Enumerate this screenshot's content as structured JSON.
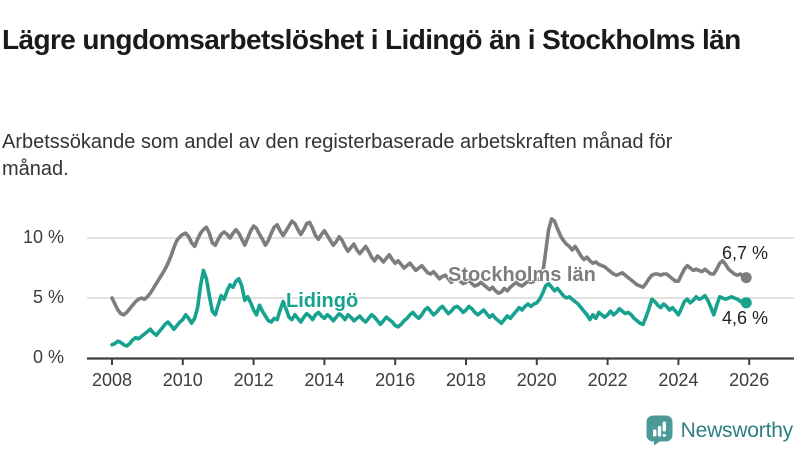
{
  "header": {
    "title": "Lägre ungdomsarbetslöshet i Lidingö än i Stockholms län",
    "subtitle": "Arbetssökande som andel av den registerbaserade arbetskraften månad för månad."
  },
  "footer": {
    "brand": "Newsworthy"
  },
  "colors": {
    "title": "#1a1a1a",
    "text": "#333333",
    "axis": "#3f3f3f",
    "grid": "#d9d9d9",
    "stockholm_gray": "#7d7d7d",
    "lidingo_teal": "#17a290",
    "logo_icon": "#4b9a98",
    "logo_text": "#2f7e86"
  },
  "chart_data": {
    "type": "line",
    "unit": "%",
    "x_unit": "month",
    "x_start": "2008-01",
    "x_end": "2025-12",
    "grid": "horizontal",
    "ylim": [
      0,
      12.5
    ],
    "y_ticks": [
      {
        "label": "0 %",
        "value": 0
      },
      {
        "label": "5 %",
        "value": 5
      },
      {
        "label": "10 %",
        "value": 10
      }
    ],
    "x_ticks": [
      {
        "label": "2008",
        "year": 2008
      },
      {
        "label": "2010",
        "year": 2010
      },
      {
        "label": "2012",
        "year": 2012
      },
      {
        "label": "2014",
        "year": 2014
      },
      {
        "label": "2016",
        "year": 2016
      },
      {
        "label": "2018",
        "year": 2018
      },
      {
        "label": "2020",
        "year": 2020
      },
      {
        "label": "2022",
        "year": 2022
      },
      {
        "label": "2024",
        "year": 2024
      },
      {
        "label": "2026",
        "year": 2026
      }
    ],
    "series": [
      {
        "id": "stockholms-lan",
        "name": "Stockholms län",
        "color": "#7d7d7d",
        "end_label": "6,7 %",
        "end_value": 6.7,
        "values": [
          5.0,
          4.5,
          4.0,
          3.7,
          3.6,
          3.8,
          4.1,
          4.4,
          4.7,
          4.9,
          5.0,
          4.9,
          5.1,
          5.4,
          5.8,
          6.2,
          6.6,
          7.0,
          7.4,
          7.9,
          8.5,
          9.2,
          9.8,
          10.1,
          10.3,
          10.4,
          10.1,
          9.6,
          9.3,
          9.9,
          10.4,
          10.7,
          10.9,
          10.4,
          9.6,
          9.4,
          9.9,
          10.3,
          10.5,
          10.3,
          10.0,
          10.4,
          10.7,
          10.4,
          9.9,
          9.4,
          10.0,
          10.6,
          11.0,
          10.8,
          10.3,
          9.9,
          9.4,
          9.8,
          10.4,
          10.9,
          11.1,
          10.6,
          10.2,
          10.6,
          11.0,
          11.4,
          11.2,
          10.7,
          10.3,
          10.7,
          11.2,
          11.3,
          10.8,
          10.2,
          9.9,
          10.3,
          10.6,
          10.2,
          9.8,
          9.4,
          9.7,
          10.1,
          9.8,
          9.3,
          8.9,
          9.2,
          9.5,
          9.0,
          8.7,
          9.0,
          9.3,
          8.9,
          8.4,
          8.1,
          8.5,
          8.3,
          8.0,
          8.3,
          8.6,
          8.2,
          7.9,
          8.1,
          7.8,
          7.5,
          7.7,
          7.9,
          7.6,
          7.3,
          7.5,
          7.7,
          7.4,
          7.1,
          7.0,
          7.2,
          6.9,
          6.6,
          6.8,
          6.9,
          6.6,
          6.3,
          6.5,
          6.6,
          6.4,
          6.2,
          6.3,
          6.5,
          6.2,
          6.0,
          6.1,
          6.3,
          6.1,
          5.9,
          5.7,
          5.9,
          5.6,
          5.4,
          5.5,
          5.8,
          5.6,
          5.9,
          6.1,
          6.3,
          6.1,
          6.0,
          6.2,
          6.4,
          6.3,
          6.4,
          6.5,
          6.6,
          7.0,
          8.8,
          10.7,
          11.6,
          11.4,
          10.8,
          10.2,
          9.8,
          9.5,
          9.3,
          9.0,
          9.3,
          8.9,
          8.5,
          8.2,
          8.4,
          8.1,
          7.9,
          8.0,
          7.8,
          7.7,
          7.6,
          7.4,
          7.2,
          7.0,
          6.9,
          7.0,
          7.1,
          6.9,
          6.7,
          6.5,
          6.3,
          6.1,
          6.0,
          5.9,
          6.2,
          6.6,
          6.9,
          7.0,
          7.0,
          6.9,
          7.0,
          7.0,
          6.8,
          6.6,
          6.4,
          6.4,
          6.9,
          7.4,
          7.7,
          7.5,
          7.3,
          7.4,
          7.3,
          7.2,
          7.4,
          7.2,
          7.0,
          7.0,
          7.4,
          7.9,
          8.1,
          7.8,
          7.4,
          7.2,
          7.0,
          6.9,
          7.0,
          6.8,
          6.7
        ]
      },
      {
        "id": "lidingo",
        "name": "Lidingö",
        "color": "#17a290",
        "end_label": "4,6 %",
        "end_value": 4.6,
        "values": [
          1.1,
          1.2,
          1.4,
          1.3,
          1.1,
          1.0,
          1.2,
          1.5,
          1.7,
          1.6,
          1.8,
          2.0,
          2.2,
          2.4,
          2.1,
          1.9,
          2.2,
          2.5,
          2.8,
          3.0,
          2.7,
          2.4,
          2.7,
          3.0,
          3.2,
          3.6,
          3.3,
          2.9,
          3.3,
          4.2,
          6.0,
          7.3,
          6.6,
          5.2,
          3.9,
          3.6,
          4.4,
          5.2,
          4.9,
          5.6,
          6.1,
          5.9,
          6.4,
          6.6,
          6.0,
          4.8,
          5.1,
          4.6,
          4.0,
          3.6,
          4.4,
          3.9,
          3.5,
          3.1,
          3.0,
          3.3,
          3.2,
          4.0,
          4.7,
          4.1,
          3.4,
          3.2,
          3.6,
          3.3,
          3.0,
          3.4,
          3.7,
          3.5,
          3.2,
          3.6,
          3.8,
          3.5,
          3.3,
          3.6,
          3.4,
          3.1,
          3.4,
          3.7,
          3.5,
          3.2,
          3.6,
          3.4,
          3.1,
          3.3,
          3.5,
          3.2,
          3.0,
          3.3,
          3.6,
          3.4,
          3.1,
          2.8,
          3.1,
          3.4,
          3.2,
          3.0,
          2.7,
          2.6,
          2.8,
          3.1,
          3.3,
          3.6,
          3.8,
          3.5,
          3.3,
          3.6,
          4.0,
          4.2,
          3.9,
          3.6,
          3.8,
          4.1,
          4.3,
          4.0,
          3.7,
          3.9,
          4.2,
          4.3,
          4.1,
          3.8,
          4.0,
          4.3,
          4.1,
          3.8,
          3.6,
          3.8,
          4.0,
          3.7,
          3.4,
          3.6,
          3.3,
          3.1,
          2.9,
          3.2,
          3.5,
          3.3,
          3.6,
          3.9,
          4.2,
          4.0,
          4.3,
          4.5,
          4.3,
          4.5,
          4.6,
          4.9,
          5.4,
          6.0,
          6.2,
          5.9,
          5.6,
          5.8,
          5.5,
          5.2,
          5.0,
          5.1,
          4.9,
          4.7,
          4.5,
          4.2,
          3.9,
          3.6,
          3.2,
          3.6,
          3.3,
          3.8,
          3.6,
          3.4,
          3.6,
          3.9,
          3.6,
          3.8,
          4.1,
          3.9,
          3.7,
          3.8,
          3.6,
          3.3,
          3.1,
          2.9,
          2.8,
          3.4,
          4.1,
          4.9,
          4.7,
          4.4,
          4.2,
          4.5,
          4.3,
          4.0,
          4.2,
          3.9,
          3.6,
          4.1,
          4.7,
          4.9,
          4.6,
          4.8,
          5.1,
          4.9,
          5.0,
          5.2,
          4.8,
          4.2,
          3.6,
          4.4,
          5.1,
          5.0,
          4.9,
          5.0,
          5.1,
          5.0,
          4.9,
          4.7,
          4.8,
          4.6
        ]
      }
    ]
  }
}
